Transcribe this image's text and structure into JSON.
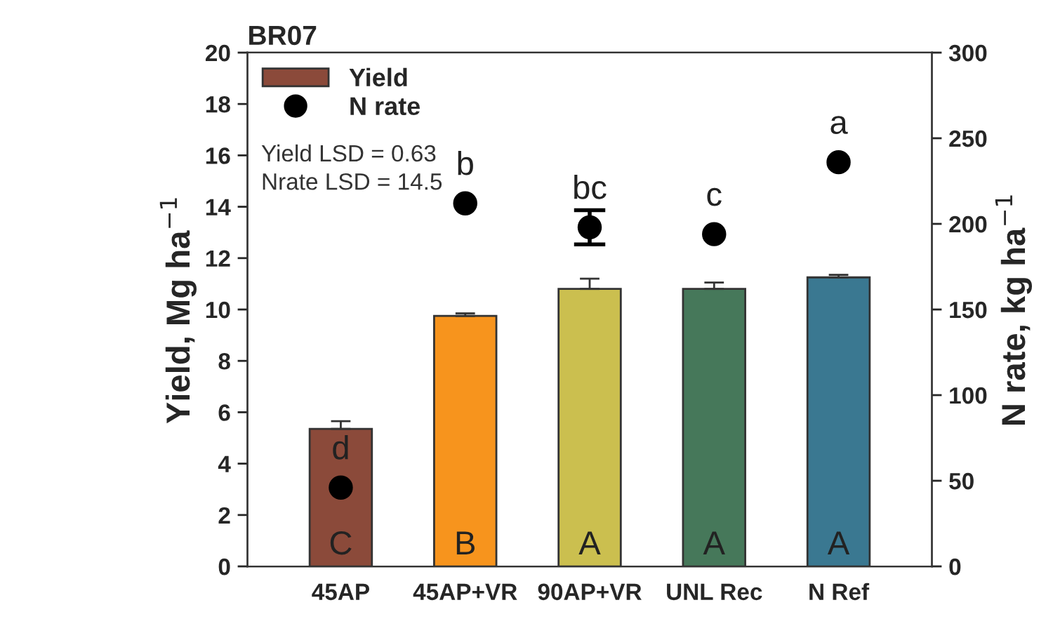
{
  "chart_data": {
    "type": "bar",
    "title": "BR07",
    "categories": [
      "45AP",
      "45AP+VR",
      "90AP+VR",
      "UNL Rec",
      "N Ref"
    ],
    "series": [
      {
        "name": "Yield",
        "colors": [
          "#8b4a3a",
          "#f7941d",
          "#cbbf4f",
          "#46785a",
          "#3a7891"
        ],
        "color": "#8b4a3a",
        "values": [
          5.35,
          9.75,
          10.8,
          10.8,
          11.25
        ],
        "errors": [
          [
            5.35,
            5.65
          ],
          [
            9.75,
            9.85
          ],
          [
            10.8,
            11.2
          ],
          [
            10.8,
            11.05
          ],
          [
            11.25,
            11.35
          ]
        ]
      },
      {
        "name": "N rate",
        "type": "scatter",
        "axis": "y2",
        "color": "#000000",
        "values": [
          46,
          212,
          198,
          194,
          236
        ],
        "errors": [
          null,
          null,
          [
            188,
            208
          ],
          null,
          null
        ]
      }
    ],
    "ylabel": "Yield, Mg ha$^{−1}$",
    "y2label": "N rate, kg ha$^{−1}$",
    "ylim": [
      0,
      20
    ],
    "yticks": [
      0,
      2,
      4,
      6,
      8,
      10,
      12,
      14,
      16,
      18,
      20
    ],
    "y2lim": [
      0,
      300
    ],
    "y2ticks": [
      0,
      50,
      100,
      150,
      200,
      250,
      300
    ],
    "legend": "top left",
    "marker": "circle",
    "grid": false,
    "annotations": [
      "Yield LSD = 0.63",
      "Nrate LSD = 14.5",
      "C",
      "B",
      "A",
      "A",
      "A",
      "d",
      "b",
      "bc",
      "c",
      "a"
    ]
  }
}
